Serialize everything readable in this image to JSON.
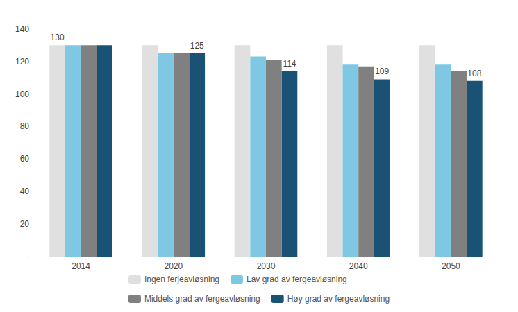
{
  "chart_data": {
    "type": "bar",
    "categories": [
      "2014",
      "2020",
      "2030",
      "2040",
      "2050"
    ],
    "series": [
      {
        "name": "Ingen ferjeavløsning",
        "color": "#e0e0e0",
        "values": [
          130,
          130,
          130,
          130,
          130
        ],
        "value_labels": [
          "130",
          null,
          null,
          null,
          null
        ]
      },
      {
        "name": "Lav grad av fergeavløsning",
        "color": "#7ec8e3",
        "values": [
          130,
          125,
          123,
          118,
          118
        ]
      },
      {
        "name": "Middels grad av fergeavløsning",
        "color": "#808080",
        "values": [
          130,
          125,
          121,
          117,
          114
        ]
      },
      {
        "name": "Høy grad av fergeavløsning",
        "color": "#1a5276",
        "values": [
          130,
          125,
          114,
          109,
          108
        ],
        "value_labels": [
          null,
          "125",
          "114",
          "109",
          "108"
        ]
      }
    ],
    "ylim": [
      0,
      145
    ],
    "yticks": [
      {
        "value": 0,
        "label": "-"
      },
      20,
      40,
      60,
      80,
      100,
      120,
      140
    ],
    "grid": false,
    "legend": "bottom"
  }
}
